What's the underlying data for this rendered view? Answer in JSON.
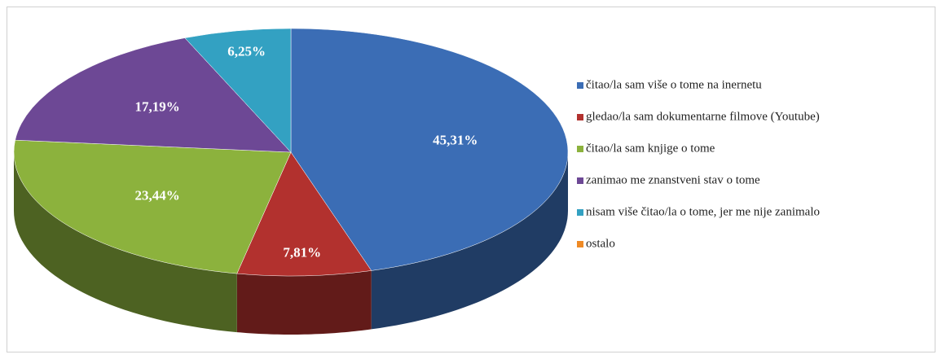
{
  "chart_data": {
    "type": "pie",
    "categories": [
      "čitao/la sam više o tome na inernetu",
      "gledao/la sam dokumentarne filmove (Youtube)",
      "čitao/la sam knjige o tome",
      "zanimao me znanstveni stav o tome",
      "nisam više čitao/la o tome, jer me nije zanimalo",
      "ostalo"
    ],
    "values": [
      45.31,
      7.81,
      23.44,
      17.19,
      6.25,
      0
    ],
    "value_labels": [
      "45,31%",
      "7,81%",
      "23,44%",
      "17,19%",
      "6,25%",
      null
    ],
    "colors": [
      "#3b6db5",
      "#b2312e",
      "#8cb23d",
      "#6d4895",
      "#33a1c2",
      "#ef8a25"
    ],
    "legend": "right"
  }
}
